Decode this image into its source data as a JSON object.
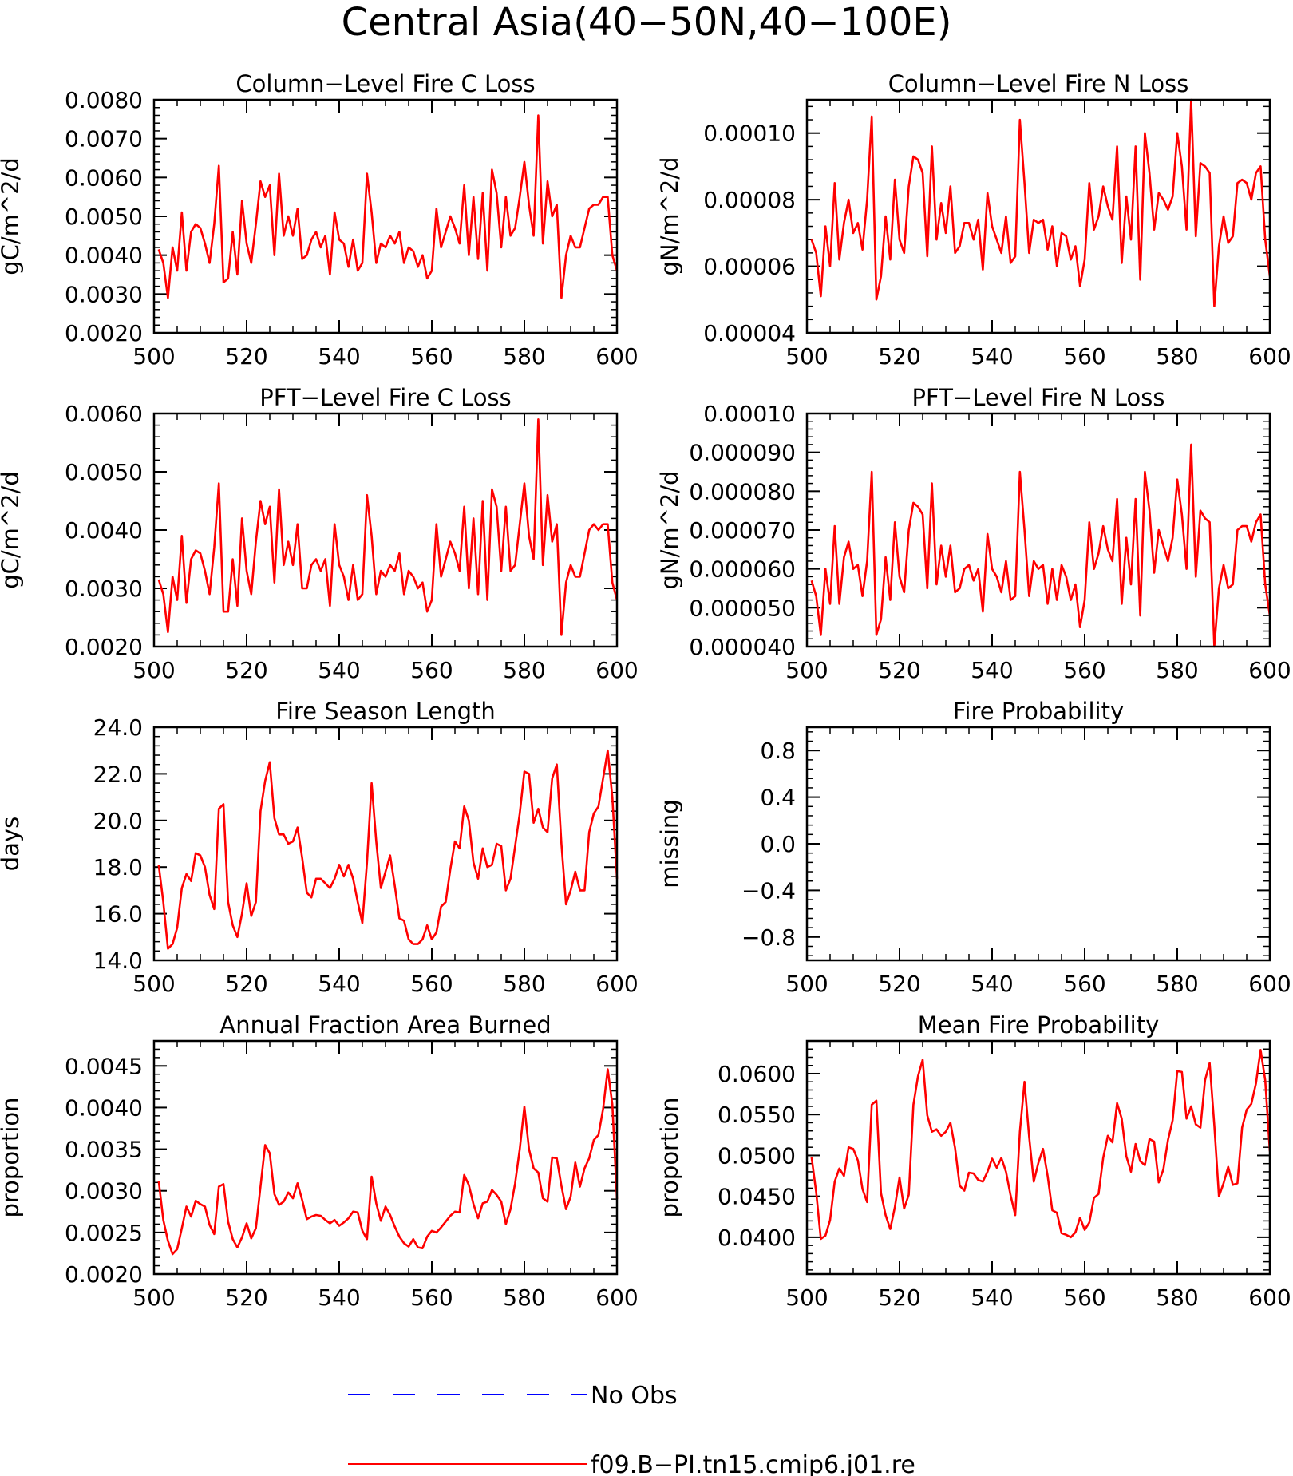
{
  "figure": {
    "title": "Central Asia(40−50N,40−100E)"
  },
  "legend": {
    "entries": [
      {
        "label": "No Obs",
        "color": "#0000ff",
        "style": "dashed"
      },
      {
        "label": "f09.B−PI.tn15.cmip6.j01.re",
        "color": "#ff0000",
        "style": "solid"
      }
    ]
  },
  "chart_data": [
    {
      "id": "col_c",
      "type": "line",
      "title": "Column−Level Fire C Loss",
      "ylabel": "gC/m^2/d",
      "xlim": [
        500,
        600
      ],
      "ylim": [
        0.002,
        0.008
      ],
      "xticks": [
        500,
        520,
        540,
        560,
        580,
        600
      ],
      "yticks": [
        "0.0020",
        "0.0030",
        "0.0040",
        "0.0050",
        "0.0060",
        "0.0070",
        "0.0080"
      ],
      "ytick_values": [
        0.002,
        0.003,
        0.004,
        0.005,
        0.006,
        0.007,
        0.008
      ],
      "x_start": 501,
      "color": "#ff0000",
      "values": [
        0.00415,
        0.0038,
        0.0029,
        0.0042,
        0.0036,
        0.0051,
        0.0036,
        0.0046,
        0.0048,
        0.0047,
        0.0043,
        0.0038,
        0.0048,
        0.0063,
        0.0033,
        0.0034,
        0.0046,
        0.0035,
        0.0054,
        0.0043,
        0.0038,
        0.0048,
        0.0059,
        0.0055,
        0.0058,
        0.004,
        0.0061,
        0.0045,
        0.005,
        0.0045,
        0.0052,
        0.0039,
        0.004,
        0.0044,
        0.0046,
        0.0042,
        0.0045,
        0.0035,
        0.0051,
        0.0044,
        0.0043,
        0.0037,
        0.0044,
        0.0036,
        0.0038,
        0.0061,
        0.0051,
        0.0038,
        0.0043,
        0.0042,
        0.0045,
        0.0043,
        0.0046,
        0.0038,
        0.0042,
        0.0041,
        0.0037,
        0.004,
        0.0034,
        0.0036,
        0.0052,
        0.0042,
        0.0046,
        0.005,
        0.0047,
        0.0043,
        0.0058,
        0.004,
        0.0055,
        0.0039,
        0.0056,
        0.0036,
        0.0062,
        0.0056,
        0.0042,
        0.0055,
        0.0045,
        0.0047,
        0.0055,
        0.0064,
        0.0053,
        0.0045,
        0.0076,
        0.0043,
        0.0059,
        0.005,
        0.0053,
        0.0029,
        0.004,
        0.0045,
        0.0042,
        0.0042,
        0.0047,
        0.0052,
        0.0053,
        0.0053,
        0.0055,
        0.0055,
        0.004,
        0.0036
      ]
    },
    {
      "id": "col_n",
      "type": "line",
      "title": "Column−Level Fire N Loss",
      "ylabel": "gN/m^2/d",
      "xlim": [
        500,
        600
      ],
      "ylim": [
        4e-05,
        0.00011
      ],
      "xticks": [
        500,
        520,
        540,
        560,
        580,
        600
      ],
      "yticks": [
        "0.00004",
        "0.00006",
        "0.00008",
        "0.00010"
      ],
      "ytick_values": [
        4e-05,
        6e-05,
        8e-05,
        0.0001
      ],
      "x_start": 501,
      "color": "#ff0000",
      "values": [
        6.8e-05,
        6.4e-05,
        5.1e-05,
        7.2e-05,
        6e-05,
        8.5e-05,
        6.2e-05,
        7.3e-05,
        8e-05,
        7e-05,
        7.3e-05,
        6.5e-05,
        8e-05,
        0.000105,
        5e-05,
        5.7e-05,
        7.5e-05,
        6.2e-05,
        8.6e-05,
        6.8e-05,
        6.4e-05,
        8.4e-05,
        9.3e-05,
        9.2e-05,
        8.8e-05,
        6.3e-05,
        9.6e-05,
        6.8e-05,
        7.9e-05,
        7e-05,
        8.4e-05,
        6.4e-05,
        6.6e-05,
        7.3e-05,
        7.3e-05,
        6.8e-05,
        7.4e-05,
        5.9e-05,
        8.2e-05,
        7.2e-05,
        6.8e-05,
        6.4e-05,
        7.5e-05,
        6.1e-05,
        6.3e-05,
        0.000104,
        8.5e-05,
        6.4e-05,
        7.4e-05,
        7.3e-05,
        7.4e-05,
        6.5e-05,
        7.2e-05,
        6e-05,
        7e-05,
        6.9e-05,
        6.2e-05,
        6.6e-05,
        5.4e-05,
        6.2e-05,
        8.5e-05,
        7.1e-05,
        7.5e-05,
        8.4e-05,
        7.8e-05,
        7.4e-05,
        9.6e-05,
        6.1e-05,
        8.1e-05,
        6.8e-05,
        9.6e-05,
        5.6e-05,
        0.0001,
        8.8e-05,
        7.1e-05,
        8.2e-05,
        8e-05,
        7.7e-05,
        8.1e-05,
        0.0001,
        9e-05,
        7.1e-05,
        0.00011,
        6.9e-05,
        9.1e-05,
        9e-05,
        8.8e-05,
        4.8e-05,
        6.6e-05,
        7.5e-05,
        6.7e-05,
        6.9e-05,
        8.5e-05,
        8.6e-05,
        8.5e-05,
        8e-05,
        8.8e-05,
        9e-05,
        6.8e-05,
        5.7e-05
      ]
    },
    {
      "id": "pft_c",
      "type": "line",
      "title": "PFT−Level Fire C Loss",
      "ylabel": "gC/m^2/d",
      "xlim": [
        500,
        600
      ],
      "ylim": [
        0.002,
        0.006
      ],
      "xticks": [
        500,
        520,
        540,
        560,
        580,
        600
      ],
      "yticks": [
        "0.0020",
        "0.0030",
        "0.0040",
        "0.0050",
        "0.0060"
      ],
      "ytick_values": [
        0.002,
        0.003,
        0.004,
        0.005,
        0.006
      ],
      "x_start": 501,
      "color": "#ff0000",
      "values": [
        0.00315,
        0.0029,
        0.00225,
        0.0032,
        0.0028,
        0.0039,
        0.00275,
        0.0035,
        0.00365,
        0.0036,
        0.0033,
        0.0029,
        0.0037,
        0.0048,
        0.0026,
        0.0026,
        0.0035,
        0.0027,
        0.0042,
        0.0033,
        0.0029,
        0.0038,
        0.0045,
        0.0041,
        0.0044,
        0.0031,
        0.0047,
        0.0034,
        0.0038,
        0.0034,
        0.0041,
        0.003,
        0.003,
        0.0034,
        0.0035,
        0.0033,
        0.0035,
        0.0027,
        0.0041,
        0.0034,
        0.0032,
        0.0028,
        0.0034,
        0.0028,
        0.0029,
        0.0046,
        0.0039,
        0.0029,
        0.0033,
        0.0032,
        0.0034,
        0.0033,
        0.0036,
        0.0029,
        0.0033,
        0.0032,
        0.003,
        0.0031,
        0.0026,
        0.0028,
        0.0041,
        0.0032,
        0.0035,
        0.0038,
        0.0036,
        0.0033,
        0.0044,
        0.003,
        0.0042,
        0.0029,
        0.0045,
        0.0028,
        0.0047,
        0.0044,
        0.0033,
        0.0044,
        0.0033,
        0.0034,
        0.0041,
        0.0048,
        0.0039,
        0.0035,
        0.0059,
        0.0034,
        0.0046,
        0.0038,
        0.0041,
        0.0022,
        0.0031,
        0.0034,
        0.0032,
        0.0032,
        0.0036,
        0.004,
        0.0041,
        0.004,
        0.0041,
        0.0041,
        0.0031,
        0.0028
      ]
    },
    {
      "id": "pft_n",
      "type": "line",
      "title": "PFT−Level Fire N Loss",
      "ylabel": "gN/m^2/d",
      "xlim": [
        500,
        600
      ],
      "ylim": [
        4e-05,
        0.0001
      ],
      "xticks": [
        500,
        520,
        540,
        560,
        580,
        600
      ],
      "yticks": [
        "0.000040",
        "0.000050",
        "0.000060",
        "0.000070",
        "0.000080",
        "0.000090",
        "0.00010"
      ],
      "ytick_values": [
        4e-05,
        5e-05,
        6e-05,
        7e-05,
        8e-05,
        9e-05,
        0.0001
      ],
      "x_start": 501,
      "color": "#ff0000",
      "values": [
        5.7e-05,
        5.3e-05,
        4.3e-05,
        6e-05,
        5.1e-05,
        7.1e-05,
        5.1e-05,
        6.3e-05,
        6.7e-05,
        6e-05,
        6.1e-05,
        5.3e-05,
        6.2e-05,
        8.5e-05,
        4.3e-05,
        4.7e-05,
        6.3e-05,
        5.2e-05,
        7.2e-05,
        5.8e-05,
        5.4e-05,
        7e-05,
        7.7e-05,
        7.6e-05,
        7.4e-05,
        5.5e-05,
        8.2e-05,
        5.6e-05,
        6.6e-05,
        5.8e-05,
        6.6e-05,
        5.4e-05,
        5.5e-05,
        6e-05,
        6.1e-05,
        5.7e-05,
        6e-05,
        4.9e-05,
        6.9e-05,
        6e-05,
        5.8e-05,
        5.4e-05,
        6.2e-05,
        5.2e-05,
        5.3e-05,
        8.5e-05,
        7e-05,
        5.3e-05,
        6.2e-05,
        6e-05,
        6.1e-05,
        5.1e-05,
        6e-05,
        5.2e-05,
        6.1e-05,
        5.8e-05,
        5.2e-05,
        5.6e-05,
        4.5e-05,
        5.2e-05,
        7.2e-05,
        6e-05,
        6.4e-05,
        7.1e-05,
        6.5e-05,
        6.2e-05,
        7.8e-05,
        5.1e-05,
        6.8e-05,
        5.6e-05,
        7.8e-05,
        4.8e-05,
        8.5e-05,
        7.5e-05,
        5.9e-05,
        7e-05,
        6.6e-05,
        6.2e-05,
        6.8e-05,
        8.3e-05,
        7.4e-05,
        6e-05,
        9.2e-05,
        5.8e-05,
        7.5e-05,
        7.3e-05,
        7.2e-05,
        4e-05,
        5.5e-05,
        6.1e-05,
        5.5e-05,
        5.6e-05,
        7e-05,
        7.1e-05,
        7.1e-05,
        6.7e-05,
        7.2e-05,
        7.4e-05,
        5.6e-05,
        4.8e-05
      ]
    },
    {
      "id": "season",
      "type": "line",
      "title": "Fire Season Length",
      "ylabel": "days",
      "xlim": [
        500,
        600
      ],
      "ylim": [
        14,
        24
      ],
      "xticks": [
        500,
        520,
        540,
        560,
        580,
        600
      ],
      "yticks": [
        "14.0",
        "16.0",
        "18.0",
        "20.0",
        "22.0",
        "24.0"
      ],
      "ytick_values": [
        14,
        16,
        18,
        20,
        22,
        24
      ],
      "x_start": 501,
      "color": "#ff0000",
      "values": [
        18.1,
        16.5,
        14.5,
        14.7,
        15.4,
        17.1,
        17.7,
        17.4,
        18.6,
        18.5,
        18.0,
        16.8,
        16.2,
        20.5,
        20.7,
        16.5,
        15.5,
        15.0,
        16.0,
        17.3,
        15.9,
        16.5,
        20.4,
        21.7,
        22.5,
        20.1,
        19.4,
        19.4,
        19.0,
        19.1,
        19.7,
        18.4,
        16.9,
        16.7,
        17.5,
        17.5,
        17.3,
        17.1,
        17.5,
        18.1,
        17.6,
        18.1,
        17.5,
        16.5,
        15.6,
        18.2,
        21.6,
        19.1,
        17.1,
        17.8,
        18.5,
        17.2,
        15.8,
        15.7,
        14.9,
        14.7,
        14.7,
        14.9,
        15.5,
        14.9,
        15.2,
        16.3,
        16.5,
        17.9,
        19.1,
        18.8,
        20.6,
        20.0,
        18.2,
        17.5,
        18.8,
        18.0,
        18.1,
        19.0,
        18.9,
        17.0,
        17.5,
        18.9,
        20.3,
        22.1,
        22.0,
        19.9,
        20.5,
        19.7,
        19.5,
        21.8,
        22.4,
        19.0,
        16.4,
        17.0,
        17.8,
        17.0,
        17.0,
        19.5,
        20.3,
        20.6,
        21.8,
        23.0,
        21.0,
        17.5
      ]
    },
    {
      "id": "prob",
      "type": "line",
      "title": "Fire Probability",
      "ylabel": "missing",
      "xlim": [
        500,
        600
      ],
      "ylim": [
        -1,
        1
      ],
      "xticks": [
        500,
        520,
        540,
        560,
        580,
        600
      ],
      "yticks": [
        "−0.8",
        "−0.4",
        "0.0",
        "0.4",
        "0.8"
      ],
      "ytick_values": [
        -0.8,
        -0.4,
        0,
        0.4,
        0.8
      ],
      "x_start": 501,
      "color": "#ff0000",
      "values": []
    },
    {
      "id": "farea",
      "type": "line",
      "title": "Annual Fraction Area Burned",
      "ylabel": "proportion",
      "xlim": [
        500,
        600
      ],
      "ylim": [
        0.002,
        0.0048
      ],
      "xticks": [
        500,
        520,
        540,
        560,
        580,
        600
      ],
      "yticks": [
        "0.0020",
        "0.0025",
        "0.0030",
        "0.0035",
        "0.0040",
        "0.0045"
      ],
      "ytick_values": [
        0.002,
        0.0025,
        0.003,
        0.0035,
        0.004,
        0.0045
      ],
      "x_start": 501,
      "color": "#ff0000",
      "values": [
        0.00312,
        0.00265,
        0.0024,
        0.00224,
        0.0023,
        0.00255,
        0.00281,
        0.00269,
        0.00288,
        0.00284,
        0.00281,
        0.00259,
        0.00248,
        0.00305,
        0.00308,
        0.00263,
        0.00242,
        0.00232,
        0.00244,
        0.00261,
        0.00243,
        0.00255,
        0.00305,
        0.00355,
        0.00345,
        0.00296,
        0.00283,
        0.00287,
        0.00298,
        0.00291,
        0.00309,
        0.00289,
        0.00266,
        0.00269,
        0.00271,
        0.0027,
        0.00265,
        0.00261,
        0.00265,
        0.00258,
        0.00262,
        0.00267,
        0.00275,
        0.00274,
        0.00252,
        0.00242,
        0.00317,
        0.00285,
        0.00264,
        0.00281,
        0.00271,
        0.00257,
        0.00245,
        0.00237,
        0.00233,
        0.00242,
        0.00232,
        0.00231,
        0.00245,
        0.00252,
        0.0025,
        0.00256,
        0.00263,
        0.0027,
        0.00275,
        0.00274,
        0.00319,
        0.00307,
        0.00284,
        0.00267,
        0.00285,
        0.00287,
        0.00301,
        0.00295,
        0.00287,
        0.0026,
        0.00278,
        0.00309,
        0.0035,
        0.00401,
        0.0035,
        0.00327,
        0.00322,
        0.00291,
        0.00287,
        0.0034,
        0.00339,
        0.00306,
        0.00278,
        0.00293,
        0.00334,
        0.00305,
        0.00327,
        0.00339,
        0.00361,
        0.00367,
        0.00398,
        0.00446,
        0.00404,
        0.0029
      ]
    },
    {
      "id": "mprob",
      "type": "line",
      "title": "Mean Fire Probability",
      "ylabel": "proportion",
      "xlim": [
        500,
        600
      ],
      "ylim": [
        0.0355,
        0.064
      ],
      "xticks": [
        500,
        520,
        540,
        560,
        580,
        600
      ],
      "yticks": [
        "0.0400",
        "0.0450",
        "0.0500",
        "0.0550",
        "0.0600"
      ],
      "ytick_values": [
        0.04,
        0.045,
        0.05,
        0.055,
        0.06
      ],
      "x_start": 501,
      "color": "#ff0000",
      "values": [
        0.0498,
        0.0455,
        0.0398,
        0.0402,
        0.0421,
        0.0468,
        0.0484,
        0.0475,
        0.051,
        0.0508,
        0.0494,
        0.0459,
        0.0443,
        0.0562,
        0.0567,
        0.0454,
        0.0427,
        0.041,
        0.0437,
        0.0473,
        0.0435,
        0.0452,
        0.0562,
        0.0597,
        0.0617,
        0.0549,
        0.0529,
        0.0532,
        0.0524,
        0.0529,
        0.054,
        0.0509,
        0.0463,
        0.0457,
        0.0479,
        0.0478,
        0.047,
        0.0468,
        0.048,
        0.0496,
        0.0485,
        0.0497,
        0.048,
        0.0451,
        0.0427,
        0.0529,
        0.059,
        0.0523,
        0.0468,
        0.0491,
        0.0508,
        0.0475,
        0.0433,
        0.043,
        0.0405,
        0.0403,
        0.04,
        0.0406,
        0.0424,
        0.0409,
        0.0418,
        0.0448,
        0.0453,
        0.0497,
        0.0524,
        0.0516,
        0.0564,
        0.0545,
        0.0499,
        0.048,
        0.0514,
        0.0493,
        0.0488,
        0.052,
        0.0517,
        0.0467,
        0.0483,
        0.0519,
        0.0543,
        0.0603,
        0.0602,
        0.0545,
        0.056,
        0.0538,
        0.0534,
        0.0592,
        0.0613,
        0.0537,
        0.045,
        0.0466,
        0.0486,
        0.0464,
        0.0466,
        0.0534,
        0.0556,
        0.0563,
        0.0588,
        0.0629,
        0.0592,
        0.0505
      ]
    }
  ]
}
